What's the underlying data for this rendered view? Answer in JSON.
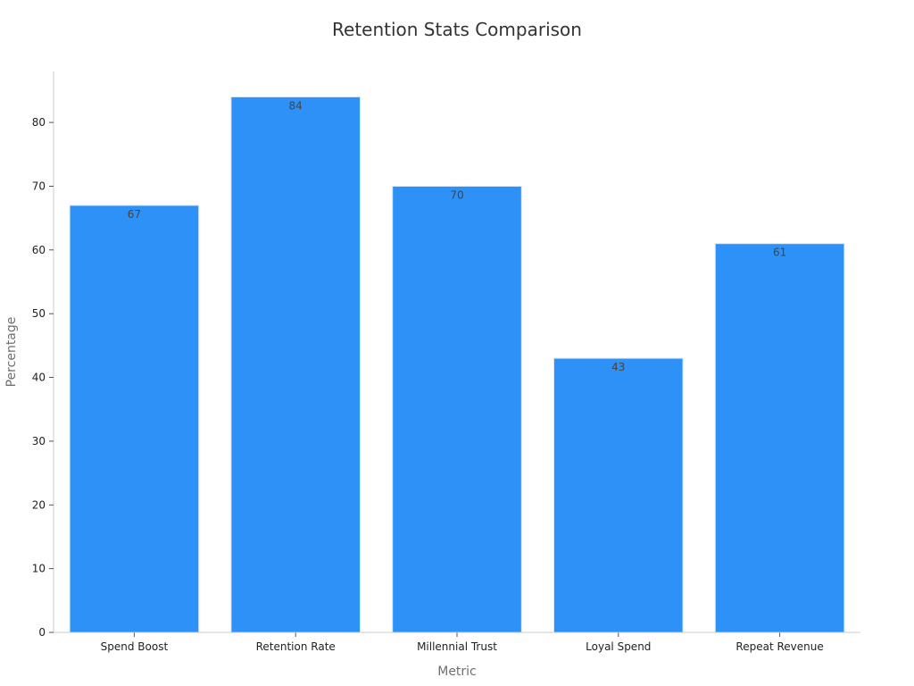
{
  "chart_data": {
    "type": "bar",
    "title": "Retention Stats Comparison",
    "xlabel": "Metric",
    "ylabel": "Percentage",
    "categories": [
      "Spend Boost",
      "Retention Rate",
      "Millennial Trust",
      "Loyal Spend",
      "Repeat Revenue"
    ],
    "values": [
      67,
      84,
      70,
      43,
      61
    ],
    "ylim": [
      0,
      88
    ],
    "yticks": [
      0,
      10,
      20,
      30,
      40,
      50,
      60,
      70,
      80
    ],
    "grid": false,
    "legend": "none",
    "colors": {
      "bar": "#2e91f7",
      "bar_edge": "#d6e8fb"
    }
  }
}
